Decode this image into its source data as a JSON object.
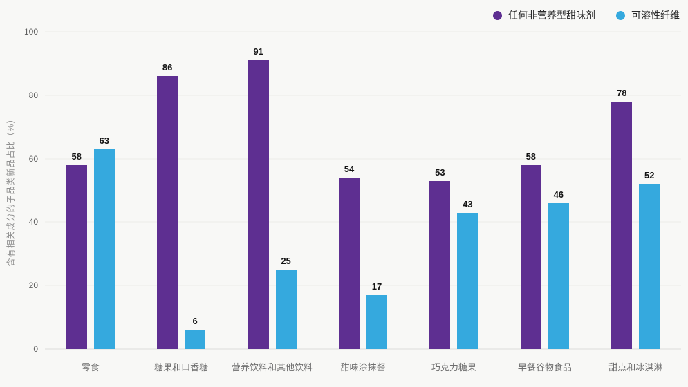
{
  "chart_data": {
    "type": "bar",
    "title": "",
    "categories": [
      "零食",
      "糖果和口香糖",
      "营养饮料和其他饮料",
      "甜味涂抹酱",
      "巧克力糖果",
      "早餐谷物食品",
      "甜点和冰淇淋"
    ],
    "series": [
      {
        "name": "任何非营养型甜味剂",
        "color": "#5e2f91",
        "values": [
          58,
          86,
          91,
          54,
          53,
          58,
          78
        ]
      },
      {
        "name": "可溶性纤维",
        "color": "#35a9de",
        "values": [
          63,
          6,
          25,
          17,
          43,
          46,
          52
        ]
      }
    ],
    "ylabel": "含有相关成分的子品类新品占比（%）",
    "ylim": [
      0,
      100
    ],
    "yticks": [
      0,
      20,
      40,
      60,
      80,
      100
    ],
    "grid": true,
    "legend_position": "top-right",
    "value_labels": true
  }
}
